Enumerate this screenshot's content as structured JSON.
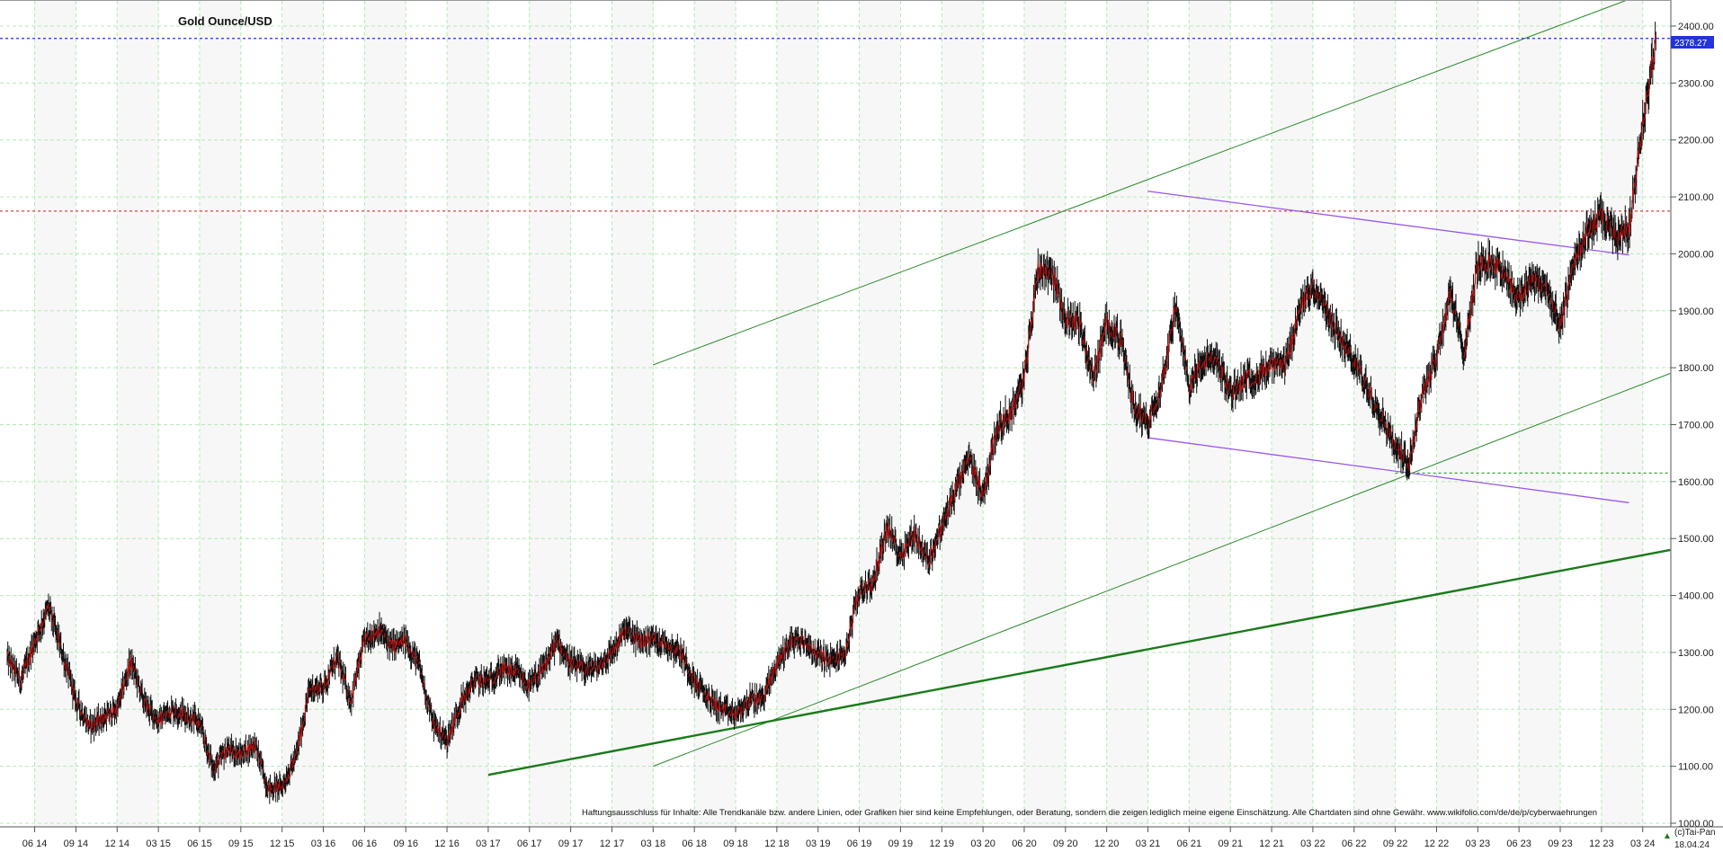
{
  "chart_data": {
    "type": "line",
    "title": "Gold Ounce/USD",
    "x_tick_labels": [
      "06 14",
      "09 14",
      "12 14",
      "03 15",
      "06 15",
      "09 15",
      "12 15",
      "03 16",
      "06 16",
      "09 16",
      "12 16",
      "03 17",
      "06 17",
      "09 17",
      "12 17",
      "03 18",
      "06 18",
      "09 18",
      "12 18",
      "03 19",
      "06 19",
      "09 19",
      "12 19",
      "03 20",
      "06 20",
      "09 20",
      "12 20",
      "03 21",
      "06 21",
      "09 21",
      "12 21",
      "03 22",
      "06 22",
      "09 22",
      "12 22",
      "03 23",
      "06 23",
      "09 23",
      "12 23",
      "03 24"
    ],
    "y_tick_labels": [
      "1000.00",
      "1100.00",
      "1200.00",
      "1300.00",
      "1400.00",
      "1500.00",
      "1600.00",
      "1700.00",
      "1800.00",
      "1900.00",
      "2000.00",
      "2100.00",
      "2200.00",
      "2300.00",
      "2400.00"
    ],
    "ylim": [
      1000,
      2450
    ],
    "grid": true,
    "last_price_label": "2378.27",
    "last_price": 2378.27,
    "date_label": "18.04.24",
    "copyright": "(c)Tai-Pan",
    "disclaimer": "Haftungsausschluss für Inhalte: Alle Trendkanäle bzw. andere Linien, oder Grafiken hier sind keine Empfehlungen, oder Beratung, sondern die zeigen lediglich meine eigene Einschätzung. Alle Chartdaten sind ohne Gewähr.  www.wikifolio.com/de/de/p/cyberwaehrungen",
    "series": [
      {
        "x": [
          "04 14",
          "05 14",
          "06 14",
          "07 14",
          "08 14",
          "09 14",
          "10 14",
          "11 14",
          "12 14",
          "01 15",
          "02 15",
          "03 15",
          "04 15",
          "05 15",
          "06 15",
          "07 15",
          "08 15",
          "09 15",
          "10 15",
          "11 15",
          "12 15",
          "01 16",
          "02 16",
          "03 16",
          "04 16",
          "05 16",
          "06 16",
          "07 16",
          "08 16",
          "09 16",
          "10 16",
          "11 16",
          "12 16",
          "01 17",
          "02 17",
          "03 17",
          "04 17",
          "05 17",
          "06 17",
          "07 17",
          "08 17",
          "09 17",
          "10 17",
          "11 17",
          "12 17",
          "01 18",
          "02 18",
          "03 18",
          "04 18",
          "05 18",
          "06 18",
          "07 18",
          "08 18",
          "09 18",
          "10 18",
          "11 18",
          "12 18",
          "01 19",
          "02 19",
          "03 19",
          "04 19",
          "05 19",
          "06 19",
          "07 19",
          "08 19",
          "09 19",
          "10 19",
          "11 19",
          "12 19",
          "01 20",
          "02 20",
          "03 20",
          "04 20",
          "05 20",
          "06 20",
          "07 20",
          "08 20",
          "09 20",
          "10 20",
          "11 20",
          "12 20",
          "01 21",
          "02 21",
          "03 21",
          "04 21",
          "05 21",
          "06 21",
          "07 21",
          "08 21",
          "09 21",
          "10 21",
          "11 21",
          "12 21",
          "01 22",
          "02 22",
          "03 22",
          "04 22",
          "05 22",
          "06 22",
          "07 22",
          "08 22",
          "09 22",
          "10 22",
          "11 22",
          "12 22",
          "01 23",
          "02 23",
          "03 23",
          "04 23",
          "05 23",
          "06 23",
          "07 23",
          "08 23",
          "09 23",
          "10 23",
          "11 23",
          "12 23",
          "01 24",
          "02 24",
          "03 24",
          "04 24"
        ],
        "values": [
          1290,
          1250,
          1320,
          1380,
          1300,
          1215,
          1170,
          1185,
          1200,
          1285,
          1210,
          1180,
          1200,
          1190,
          1175,
          1095,
          1130,
          1120,
          1140,
          1060,
          1065,
          1115,
          1235,
          1240,
          1290,
          1215,
          1320,
          1340,
          1310,
          1320,
          1275,
          1175,
          1145,
          1210,
          1250,
          1250,
          1270,
          1265,
          1240,
          1270,
          1320,
          1280,
          1270,
          1275,
          1300,
          1340,
          1320,
          1325,
          1315,
          1300,
          1250,
          1220,
          1200,
          1190,
          1215,
          1220,
          1280,
          1320,
          1320,
          1295,
          1285,
          1300,
          1410,
          1420,
          1520,
          1470,
          1510,
          1460,
          1520,
          1585,
          1640,
          1575,
          1695,
          1720,
          1780,
          1975,
          1970,
          1885,
          1880,
          1780,
          1880,
          1850,
          1730,
          1705,
          1770,
          1905,
          1770,
          1810,
          1815,
          1755,
          1780,
          1785,
          1805,
          1800,
          1900,
          1945,
          1900,
          1850,
          1810,
          1765,
          1715,
          1660,
          1635,
          1760,
          1820,
          1930,
          1830,
          1980,
          1985,
          1965,
          1920,
          1960,
          1940,
          1870,
          1990,
          2040,
          2065,
          2030,
          2045,
          2230,
          2378
        ]
      }
    ],
    "horizontal_lines": [
      {
        "y": 2378.27,
        "color": "#2233dd",
        "style": "dotted"
      },
      {
        "y": 2075,
        "color": "#dd4444",
        "style": "dotted"
      },
      {
        "y": 1615,
        "color": "#33aa33",
        "style": "dotted"
      }
    ],
    "trend_lines": [
      {
        "color": "#2a8a2a",
        "width": 1,
        "from": [
          "03 18",
          1805
        ],
        "to": [
          "04 24",
          2465
        ]
      },
      {
        "color": "#2a8a2a",
        "width": 1,
        "from": [
          "03 18",
          1100
        ],
        "to": [
          "05 24",
          1790
        ]
      },
      {
        "color": "#1a7a1a",
        "width": 2.4,
        "from": [
          "03 17",
          1085
        ],
        "to": [
          "05 24",
          1480
        ]
      },
      {
        "color": "#9955ee",
        "width": 1.3,
        "from": [
          "03 21",
          2110
        ],
        "to": [
          "02 24",
          1998
        ]
      },
      {
        "color": "#9955ee",
        "width": 1.3,
        "from": [
          "03 21",
          1677
        ],
        "to": [
          "02 24",
          1563
        ]
      }
    ],
    "colors": {
      "price_line": "#111111",
      "price_up_accent": "#cc1111",
      "grid": "#b6e8b6",
      "label_box": "#2233dd"
    }
  }
}
